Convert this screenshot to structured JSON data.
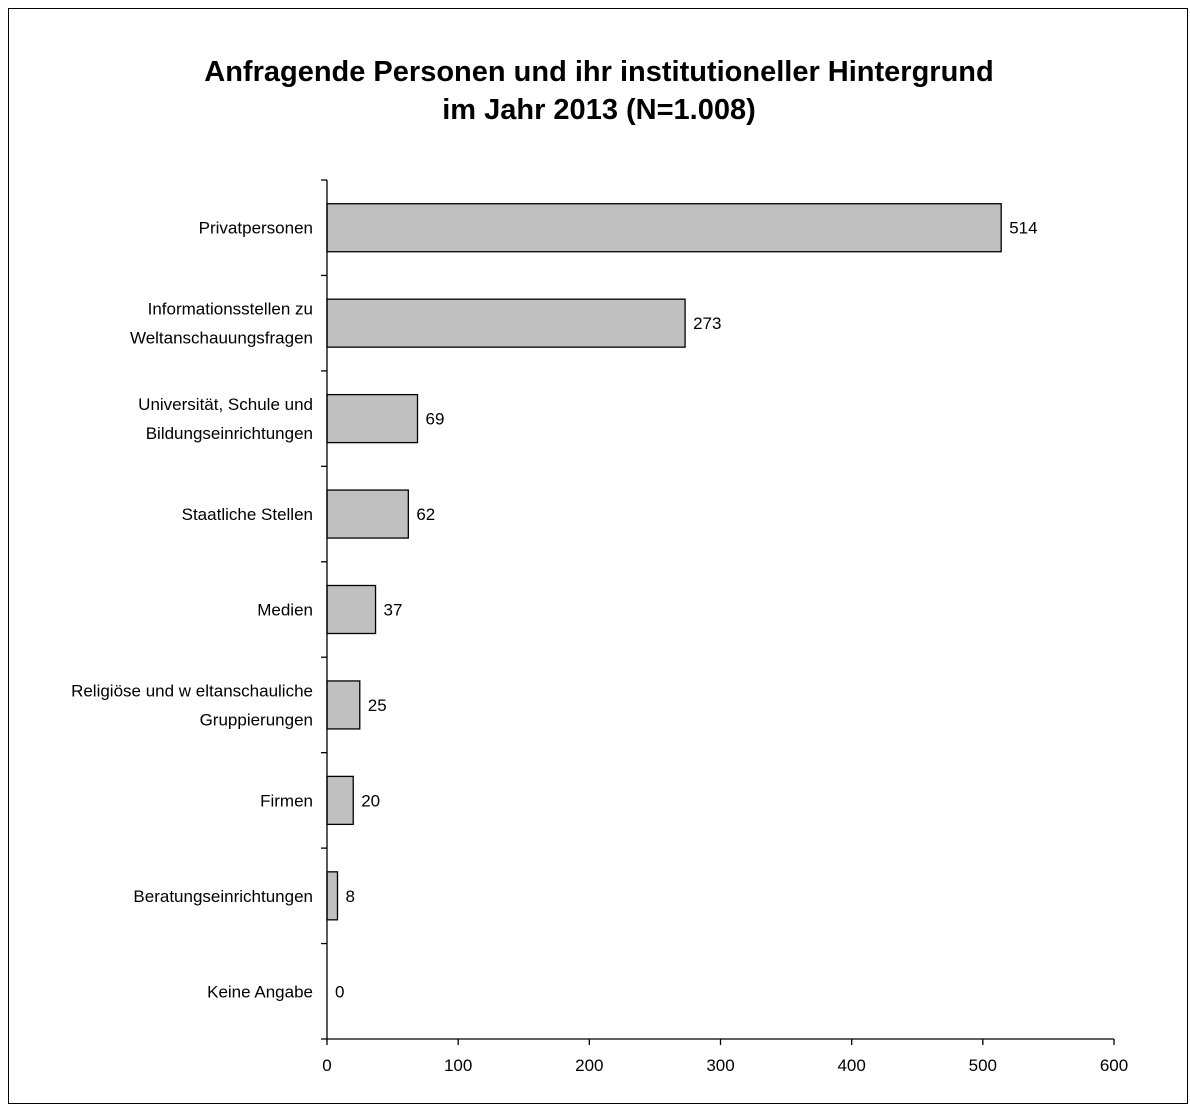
{
  "chart_data": {
    "type": "bar",
    "orientation": "horizontal",
    "title_lines": [
      "Anfragende Personen und ihr institutioneller Hintergrund",
      "im Jahr 2013 (N=1.008)"
    ],
    "categories": [
      [
        "Privatpersonen"
      ],
      [
        "Informationsstellen zu",
        "Weltanschauungsfragen"
      ],
      [
        "Universität, Schule und",
        "Bildungseinrichtungen"
      ],
      [
        "Staatliche Stellen"
      ],
      [
        "Medien"
      ],
      [
        "Religiöse und w eltanschauliche",
        "Gruppierungen"
      ],
      [
        "Firmen"
      ],
      [
        "Beratungseinrichtungen"
      ],
      [
        "Keine Angabe"
      ]
    ],
    "values": [
      514,
      273,
      69,
      62,
      37,
      25,
      20,
      8,
      0
    ],
    "data_labels": [
      "514",
      "273",
      "69",
      "62",
      "37",
      "25",
      "20",
      "8",
      "0"
    ],
    "xlim": [
      0,
      600
    ],
    "x_ticks": [
      0,
      100,
      200,
      300,
      400,
      500,
      600
    ],
    "x_tick_labels": [
      "0",
      "100",
      "200",
      "300",
      "400",
      "500",
      "600"
    ],
    "grid": false,
    "legend": "none",
    "colors": {
      "bar_fill": "#c0c0c0",
      "bar_stroke": "#000000",
      "axis": "#000000"
    }
  }
}
